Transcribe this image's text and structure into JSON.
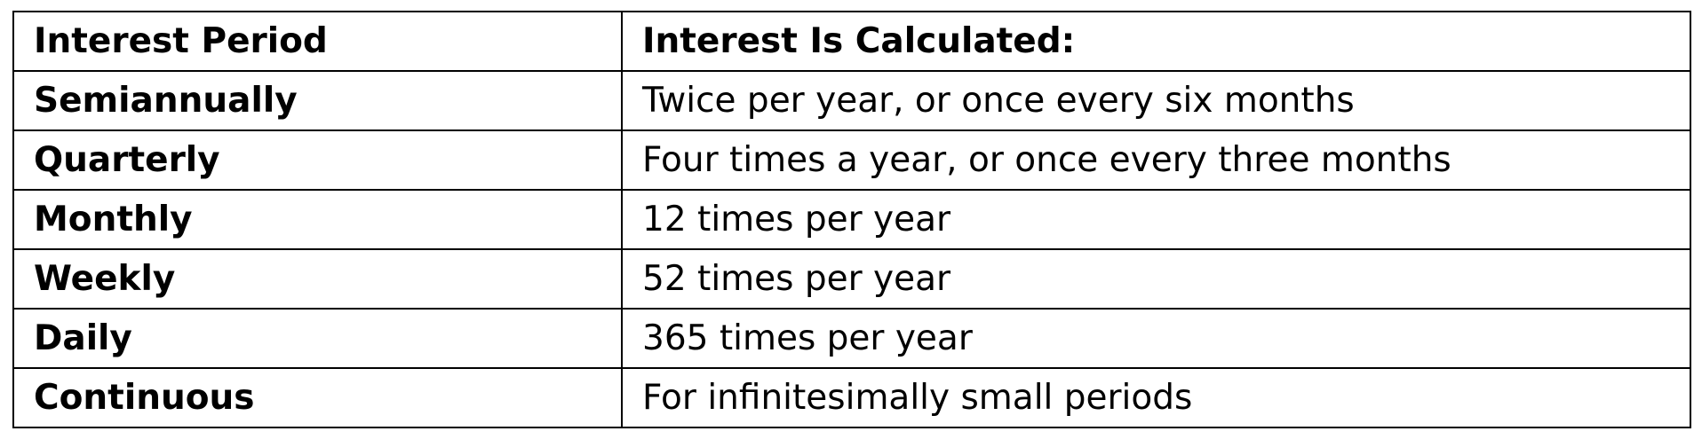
{
  "table": {
    "headers": [
      "Interest Period",
      "Interest Is Calculated:"
    ],
    "rows": [
      {
        "period": "Semiannually",
        "description": "Twice per year, or once every six months"
      },
      {
        "period": "Quarterly",
        "description": "Four times a year, or once every three months"
      },
      {
        "period": "Monthly",
        "description": "12 times per year"
      },
      {
        "period": "Weekly",
        "description": "52 times per year"
      },
      {
        "period": "Daily",
        "description": "365 times per year"
      },
      {
        "period": "Continuous",
        "description": "For infinitesimally small periods"
      }
    ]
  }
}
